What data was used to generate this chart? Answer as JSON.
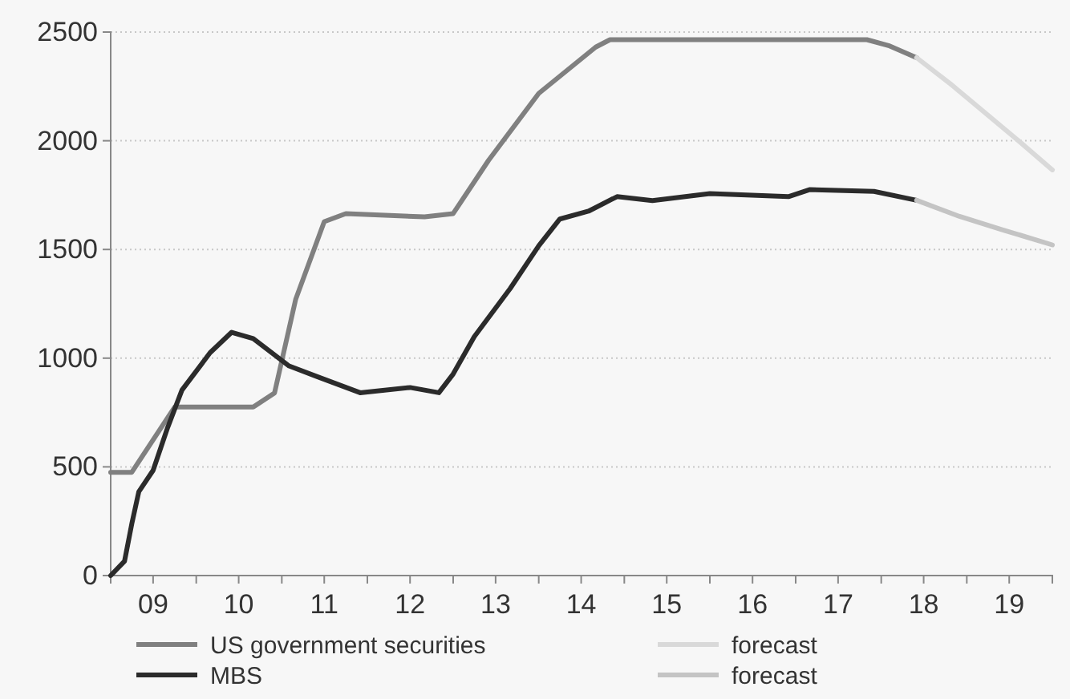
{
  "chart_data": {
    "type": "line",
    "xlim": [
      "2009-01",
      "2020-01"
    ],
    "xticks": [
      {
        "value": "2009-07",
        "label": "09"
      },
      {
        "value": "2010-01",
        "label": null
      },
      {
        "value": "2010-07",
        "label": "10"
      },
      {
        "value": "2011-01",
        "label": null
      },
      {
        "value": "2011-07",
        "label": "11"
      },
      {
        "value": "2012-01",
        "label": null
      },
      {
        "value": "2012-07",
        "label": "12"
      },
      {
        "value": "2013-01",
        "label": null
      },
      {
        "value": "2013-07",
        "label": "13"
      },
      {
        "value": "2014-01",
        "label": null
      },
      {
        "value": "2014-07",
        "label": "14"
      },
      {
        "value": "2015-01",
        "label": null
      },
      {
        "value": "2015-07",
        "label": "15"
      },
      {
        "value": "2016-01",
        "label": null
      },
      {
        "value": "2016-07",
        "label": "16"
      },
      {
        "value": "2017-01",
        "label": null
      },
      {
        "value": "2017-07",
        "label": "17"
      },
      {
        "value": "2018-01",
        "label": null
      },
      {
        "value": "2018-07",
        "label": "18"
      },
      {
        "value": "2019-01",
        "label": null
      },
      {
        "value": "2019-07",
        "label": "19"
      }
    ],
    "ylim": [
      0,
      2500
    ],
    "yticks": [
      0,
      500,
      1000,
      1500,
      2000,
      2500
    ],
    "grid": "y",
    "legend": "bottom",
    "series": [
      {
        "name": "US government securities",
        "color": "#808080",
        "x": [
          "2009-01",
          "2009-04",
          "2009-10",
          "2010-09",
          "2010-12",
          "2011-03",
          "2011-07",
          "2011-10",
          "2012-09",
          "2013-01",
          "2013-06",
          "2014-01",
          "2014-09",
          "2014-11",
          "2017-11",
          "2018-02",
          "2018-06"
        ],
        "values": [
          475,
          475,
          775,
          775,
          840,
          1270,
          1628,
          1665,
          1650,
          1665,
          1910,
          2218,
          2431,
          2465,
          2465,
          2438,
          2382
        ]
      },
      {
        "name": "MBS",
        "color": "#2b2b2b",
        "x": [
          "2009-01",
          "2009-03",
          "2009-04",
          "2009-05",
          "2009-07",
          "2009-09",
          "2009-11",
          "2010-03",
          "2010-06",
          "2010-09",
          "2011-02",
          "2011-06",
          "2011-12",
          "2012-07",
          "2012-11",
          "2013-01",
          "2013-04",
          "2013-09",
          "2014-01",
          "2014-04",
          "2014-08",
          "2014-12",
          "2015-05",
          "2016-01",
          "2016-12",
          "2017-03",
          "2017-12",
          "2018-06"
        ],
        "values": [
          0,
          66,
          238,
          386,
          484,
          681,
          853,
          1025,
          1119,
          1090,
          964,
          915,
          841,
          865,
          841,
          927,
          1099,
          1320,
          1517,
          1640,
          1676,
          1743,
          1725,
          1757,
          1743,
          1775,
          1767,
          1726
        ]
      },
      {
        "name": "forecast",
        "color": "#d9d9d9",
        "x": [
          "2018-06",
          "2018-11",
          "2019-08",
          "2020-01"
        ],
        "values": [
          2382,
          2254,
          2008,
          1866
        ]
      },
      {
        "name": "forecast",
        "color": "#c4c4c4",
        "x": [
          "2018-06",
          "2018-12",
          "2019-06",
          "2020-01"
        ],
        "values": [
          1726,
          1652,
          1591,
          1521
        ]
      }
    ]
  }
}
